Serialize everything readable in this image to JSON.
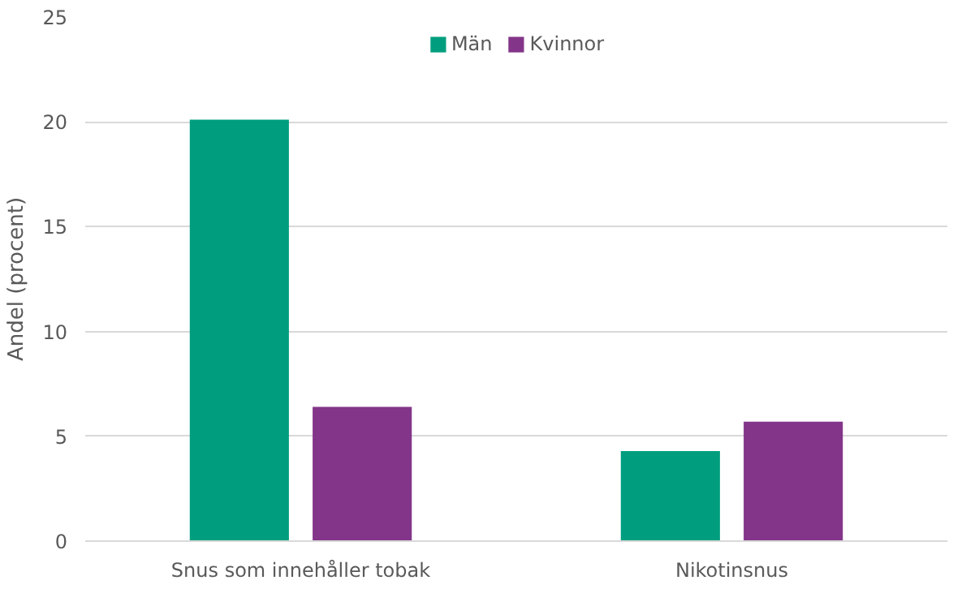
{
  "chart_data": {
    "type": "bar",
    "ylabel": "Andel (procent)",
    "categories": [
      "Snus som innehåller tobak",
      "Nikotinsnus"
    ],
    "series": [
      {
        "name": "Män",
        "color": "#009e7e",
        "values": [
          20.1,
          4.3
        ]
      },
      {
        "name": "Kvinnor",
        "color": "#833589",
        "values": [
          6.4,
          5.7
        ]
      }
    ],
    "ylim": [
      0,
      25
    ],
    "yticks": [
      0,
      5,
      10,
      15,
      20,
      25
    ],
    "grid": "y",
    "legend": "top"
  }
}
